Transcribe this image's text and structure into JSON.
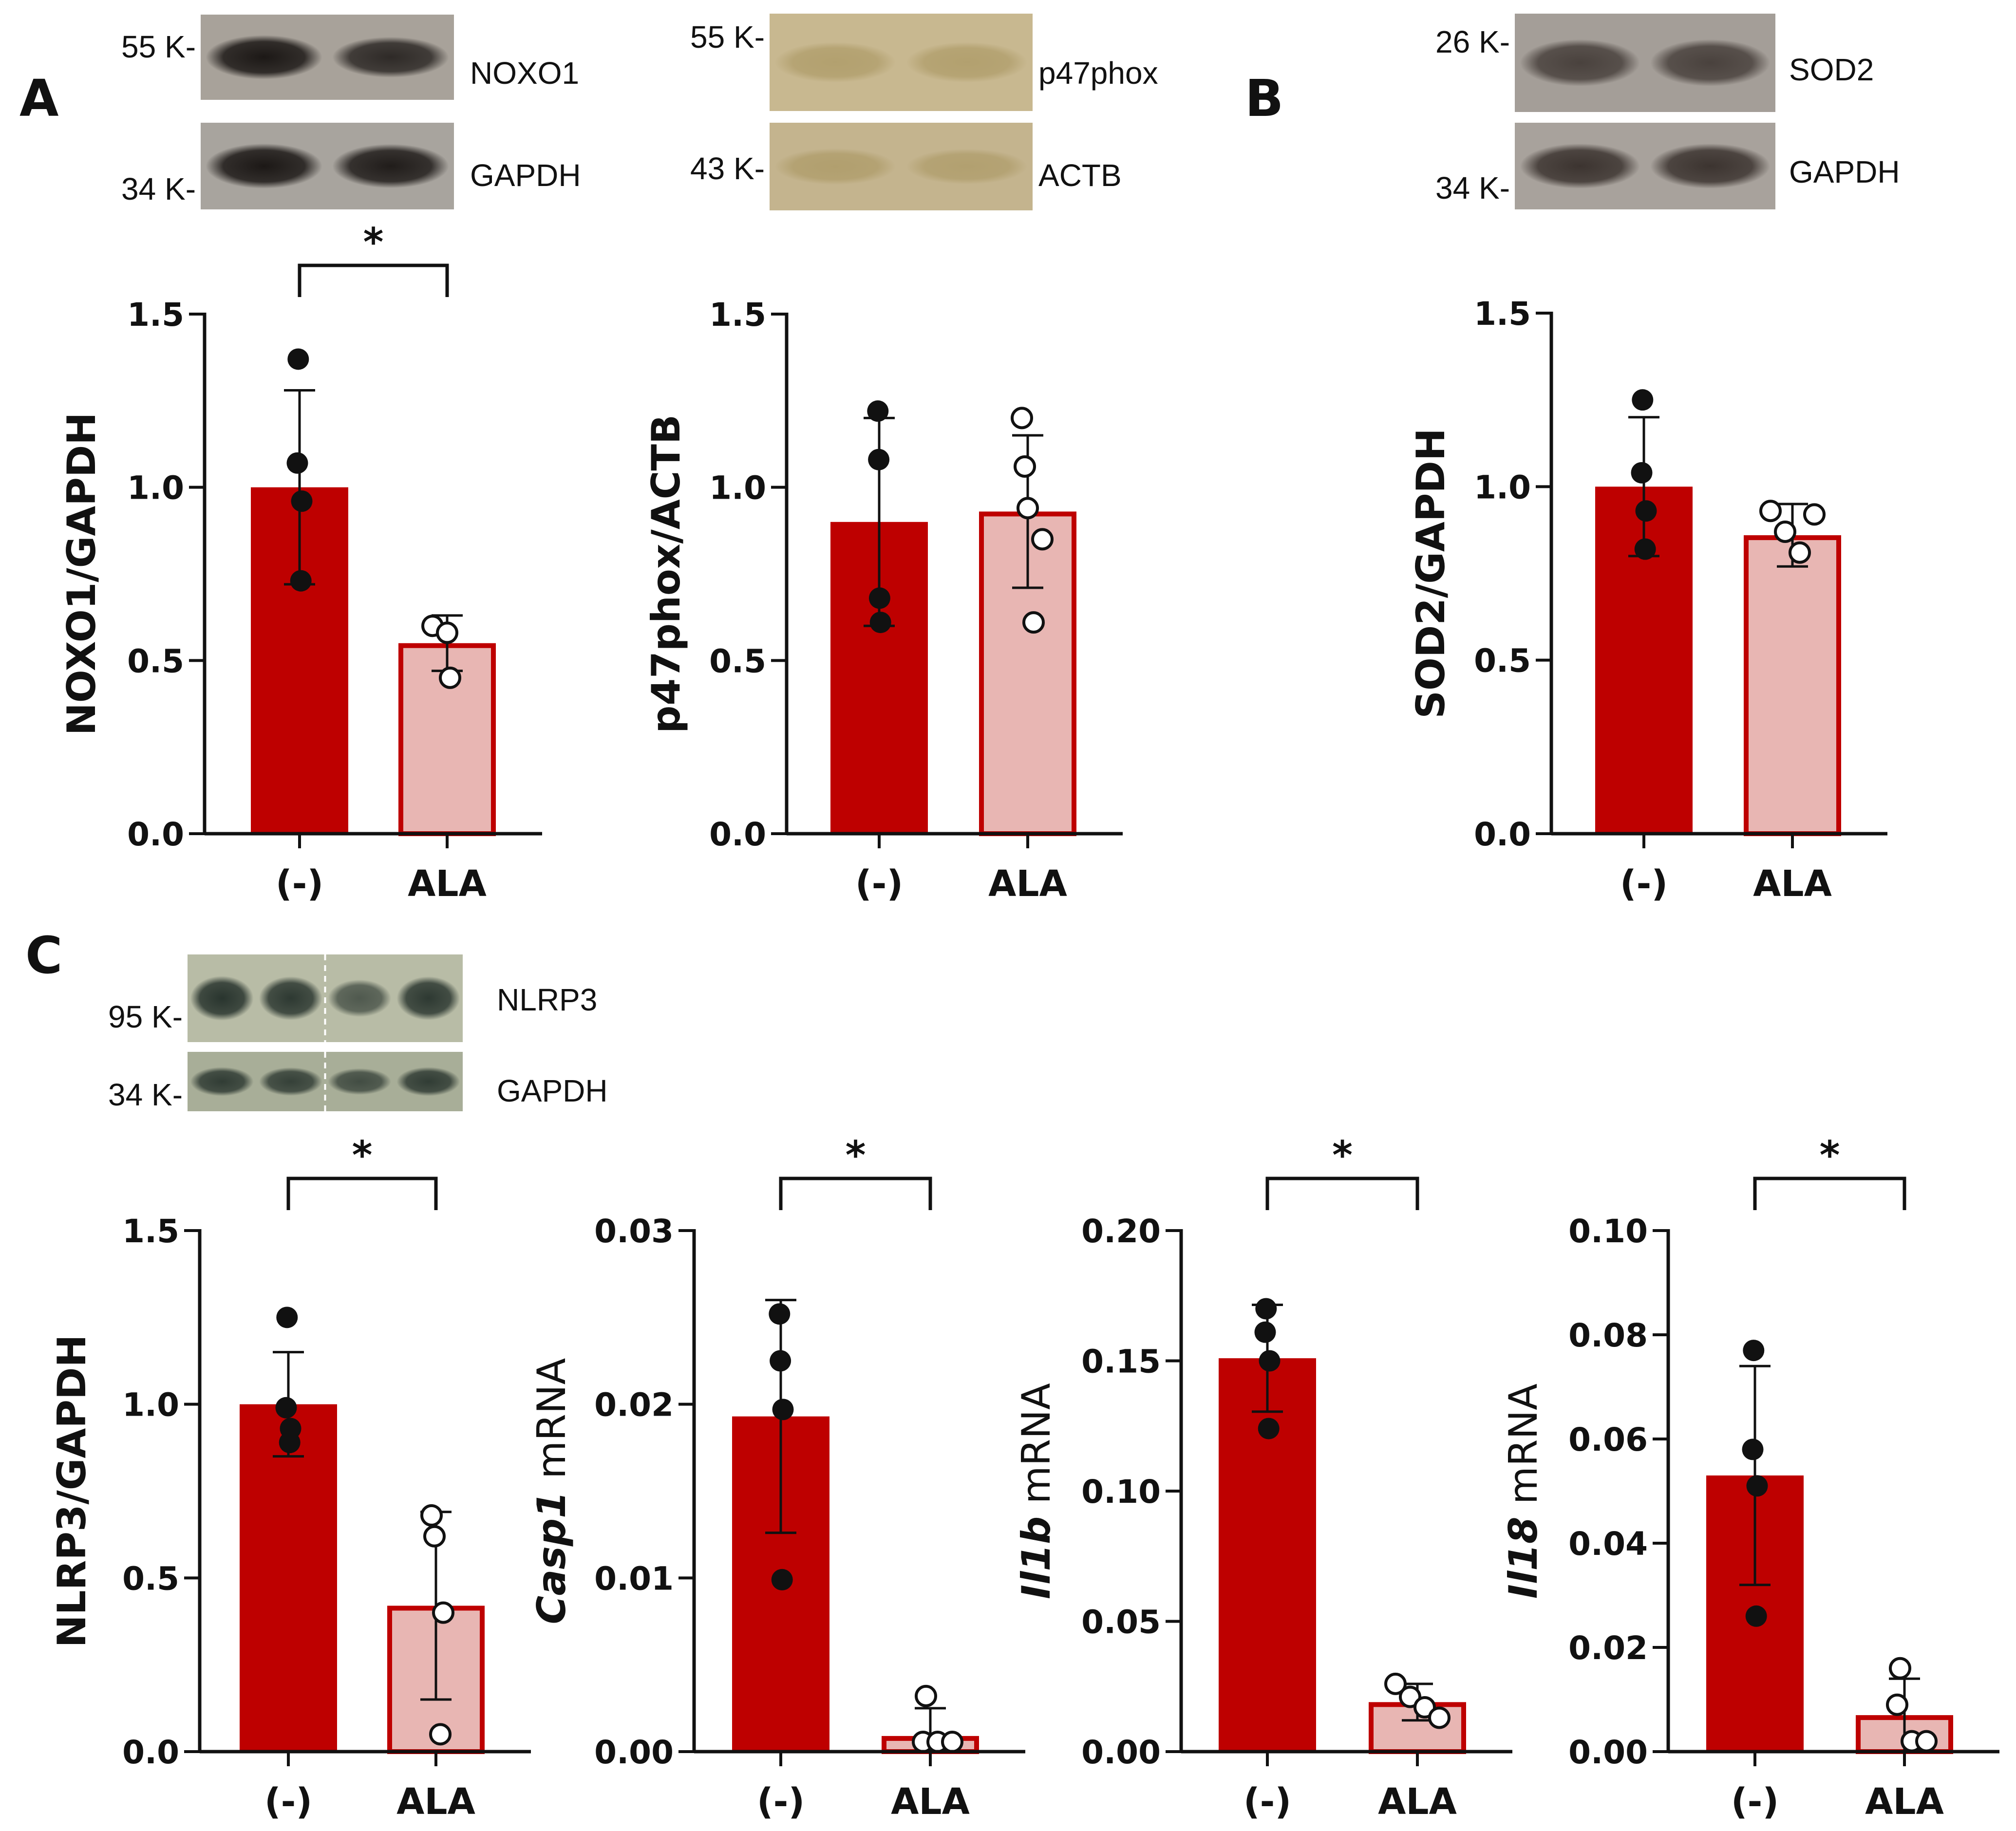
{
  "panel_letters": [
    "A",
    "B",
    "C"
  ],
  "colors": {
    "control_fill": "#BE0000",
    "treated_fill": "#E8B6B3",
    "treated_edge": "#BE0000",
    "axis": "#111111"
  },
  "blots": [
    {
      "id": "noxo1",
      "target_label": "NOXO1",
      "loading_label": "GAPDH",
      "target_marker": "55 K-",
      "loading_marker": "34 K-",
      "bg": "#a8a29a",
      "loading_bg": "#a8a49e",
      "band": "#1c1816",
      "lanes": 2,
      "intensity": [
        1.0,
        0.8
      ],
      "loading_intensity": [
        1.0,
        0.95
      ],
      "splice": false
    },
    {
      "id": "p47phox",
      "target_label": "p47phox",
      "loading_label": "ACTB",
      "target_marker": "55 K-",
      "loading_marker": "43 K-",
      "bg": "#c8b890",
      "loading_bg": "#c4b48e",
      "band": "#a8955f",
      "lanes": 2,
      "intensity": [
        0.5,
        0.5
      ],
      "loading_intensity": [
        0.5,
        0.45
      ],
      "splice": false
    },
    {
      "id": "sod2",
      "target_label": "SOD2",
      "loading_label": "GAPDH",
      "target_marker": "26 K-",
      "loading_marker": "34 K-",
      "bg": "#a49e98",
      "loading_bg": "#a8a29c",
      "band": "#3c3430",
      "lanes": 2,
      "intensity": [
        0.8,
        0.8
      ],
      "loading_intensity": [
        1.0,
        1.0
      ],
      "splice": false
    },
    {
      "id": "nlrp3",
      "target_label": "NLRP3",
      "loading_label": "GAPDH",
      "target_marker": "95 K-",
      "loading_marker": "34 K-",
      "bg": "#b8bca6",
      "loading_bg": "#a8ae98",
      "band": "#24302a",
      "lanes": 4,
      "intensity": [
        0.95,
        0.9,
        0.55,
        0.9
      ],
      "loading_intensity": [
        0.85,
        0.8,
        0.65,
        0.85
      ],
      "splice": true
    }
  ],
  "chart_data": [
    {
      "id": "noxo1",
      "type": "bar",
      "categories": [
        "(-)",
        "ALA"
      ],
      "ylabel": "NOXO1/GAPDH",
      "ylabel_italic": "",
      "ylim": [
        0,
        1.5
      ],
      "yticks": [
        0.0,
        0.5,
        1.0,
        1.5
      ],
      "tick_labels": [
        "0.0",
        "0.5",
        "1.0",
        "1.5"
      ],
      "series": [
        {
          "name": "(-)",
          "mean": 1.0,
          "sd": 0.28,
          "points": [
            1.37,
            1.07,
            0.96,
            0.73
          ]
        },
        {
          "name": "ALA",
          "mean": 0.55,
          "sd": 0.08,
          "points": [
            0.6,
            0.58,
            0.45
          ]
        }
      ],
      "significance": "*"
    },
    {
      "id": "p47phox",
      "type": "bar",
      "categories": [
        "(-)",
        "ALA"
      ],
      "ylabel": "p47phox/ACTB",
      "ylabel_italic": "",
      "ylim": [
        0,
        1.5
      ],
      "yticks": [
        0.0,
        0.5,
        1.0,
        1.5
      ],
      "tick_labels": [
        "0.0",
        "0.5",
        "1.0",
        "1.5"
      ],
      "series": [
        {
          "name": "(-)",
          "mean": 0.9,
          "sd": 0.3,
          "points": [
            1.22,
            1.08,
            0.68,
            0.61
          ]
        },
        {
          "name": "ALA",
          "mean": 0.93,
          "sd": 0.22,
          "points": [
            1.2,
            1.06,
            0.94,
            0.85,
            0.61
          ]
        }
      ],
      "significance": ""
    },
    {
      "id": "sod2",
      "type": "bar",
      "categories": [
        "(-)",
        "ALA"
      ],
      "ylabel": "SOD2/GAPDH",
      "ylabel_italic": "",
      "ylim": [
        0,
        1.5
      ],
      "yticks": [
        0.0,
        0.5,
        1.0,
        1.5
      ],
      "tick_labels": [
        "0.0",
        "0.5",
        "1.0",
        "1.5"
      ],
      "series": [
        {
          "name": "(-)",
          "mean": 1.0,
          "sd": 0.2,
          "points": [
            1.25,
            1.04,
            0.93,
            0.82
          ]
        },
        {
          "name": "ALA",
          "mean": 0.86,
          "sd": 0.09,
          "points": [
            0.93,
            0.87,
            0.81,
            0.92
          ]
        }
      ],
      "significance": ""
    },
    {
      "id": "nlrp3",
      "type": "bar",
      "categories": [
        "(-)",
        "ALA"
      ],
      "ylabel": "NLRP3/GAPDH",
      "ylabel_italic": "",
      "ylim": [
        0,
        1.5
      ],
      "yticks": [
        0.0,
        0.5,
        1.0,
        1.5
      ],
      "tick_labels": [
        "0.0",
        "0.5",
        "1.0",
        "1.5"
      ],
      "series": [
        {
          "name": "(-)",
          "mean": 1.0,
          "sd": 0.15,
          "points": [
            1.25,
            0.99,
            0.93,
            0.89
          ]
        },
        {
          "name": "ALA",
          "mean": 0.42,
          "sd": 0.27,
          "points": [
            0.68,
            0.62,
            0.4,
            0.05
          ]
        }
      ],
      "significance": "*"
    },
    {
      "id": "casp1",
      "type": "bar",
      "categories": [
        "(-)",
        "ALA"
      ],
      "ylabel": " mRNA",
      "ylabel_italic": "Casp1",
      "ylim": [
        0,
        0.03
      ],
      "yticks": [
        0.0,
        0.01,
        0.02,
        0.03
      ],
      "tick_labels": [
        "0.00",
        "0.01",
        "0.02",
        "0.03"
      ],
      "series": [
        {
          "name": "(-)",
          "mean": 0.0193,
          "sd": 0.0067,
          "points": [
            0.0252,
            0.0225,
            0.0197,
            0.0099
          ]
        },
        {
          "name": "ALA",
          "mean": 0.0009,
          "sd": 0.0016,
          "points": [
            0.0032,
            0.0001,
            0.0002,
            0.0001
          ]
        }
      ],
      "significance": "*"
    },
    {
      "id": "il1b",
      "type": "bar",
      "categories": [
        "(-)",
        "ALA"
      ],
      "ylabel": " mRNA",
      "ylabel_italic": "Il1b",
      "ylim": [
        0,
        0.2
      ],
      "yticks": [
        0.0,
        0.05,
        0.1,
        0.15,
        0.2
      ],
      "tick_labels": [
        "0.00",
        "0.05",
        "0.10",
        "0.15",
        "0.20"
      ],
      "series": [
        {
          "name": "(-)",
          "mean": 0.151,
          "sd": 0.0205,
          "points": [
            0.17,
            0.161,
            0.15,
            0.124
          ]
        },
        {
          "name": "ALA",
          "mean": 0.019,
          "sd": 0.007,
          "points": [
            0.026,
            0.021,
            0.017,
            0.013
          ]
        }
      ],
      "significance": "*"
    },
    {
      "id": "il18",
      "type": "bar",
      "categories": [
        "(-)",
        "ALA"
      ],
      "ylabel": " mRNA",
      "ylabel_italic": "Il18",
      "ylim": [
        0,
        0.1
      ],
      "yticks": [
        0.0,
        0.02,
        0.04,
        0.06,
        0.08,
        0.1
      ],
      "tick_labels": [
        "0.00",
        "0.02",
        "0.04",
        "0.06",
        "0.08",
        "0.10"
      ],
      "series": [
        {
          "name": "(-)",
          "mean": 0.053,
          "sd": 0.021,
          "points": [
            0.077,
            0.058,
            0.051,
            0.026
          ]
        },
        {
          "name": "ALA",
          "mean": 0.007,
          "sd": 0.007,
          "points": [
            0.016,
            0.009,
            0.002,
            0.002
          ]
        }
      ],
      "significance": "*"
    }
  ]
}
